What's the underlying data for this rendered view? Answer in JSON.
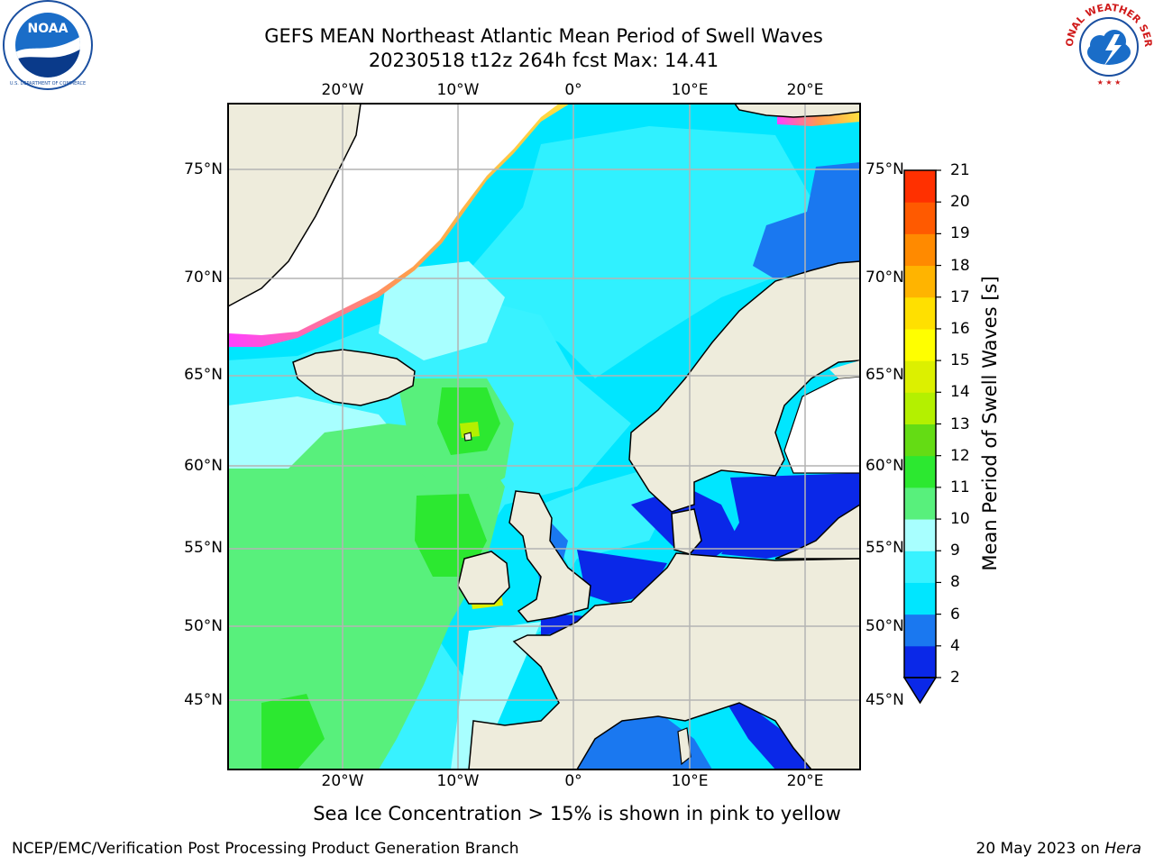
{
  "title": {
    "line1": "GEFS MEAN Northeast Atlantic Mean Period of Swell Waves",
    "line2": "20230518 t12z 264h fcst   Max: 14.41"
  },
  "axes": {
    "lon_labels": [
      "20°W",
      "10°W",
      "0°",
      "10°E",
      "20°E"
    ],
    "lat_labels": [
      "75°N",
      "70°N",
      "65°N",
      "60°N",
      "55°N",
      "50°N",
      "45°N"
    ]
  },
  "colorbar": {
    "label": "Mean Period of Swell Waves [s]",
    "ticks": [
      "2",
      "4",
      "6",
      "8",
      "9",
      "10",
      "11",
      "12",
      "13",
      "14",
      "15",
      "16",
      "17",
      "18",
      "19",
      "20",
      "21"
    ],
    "colors": [
      "#0a28e8",
      "#1a78f0",
      "#00e6ff",
      "#38f2ff",
      "#a8ffff",
      "#58f07c",
      "#2ce830",
      "#64dc14",
      "#b4f000",
      "#dcf000",
      "#ffff00",
      "#ffe000",
      "#ffb400",
      "#ff8a00",
      "#ff5a00",
      "#ff3000",
      "#ff0000"
    ]
  },
  "map": {
    "colors": {
      "land": "#eeecdc",
      "ice": "#ffffff",
      "grid": "#b4b4b4",
      "coast": "#000000"
    }
  },
  "note": "Sea Ice Concentration > 15% is shown in pink to yellow",
  "footer": {
    "left": "NCEP/EMC/Verification Post Processing Product Generation Branch",
    "date": "20 May 2023 on",
    "machine": "Hera"
  },
  "logos": {
    "left": "NOAA",
    "right_text": "NATIONAL WEATHER SERVICE"
  }
}
